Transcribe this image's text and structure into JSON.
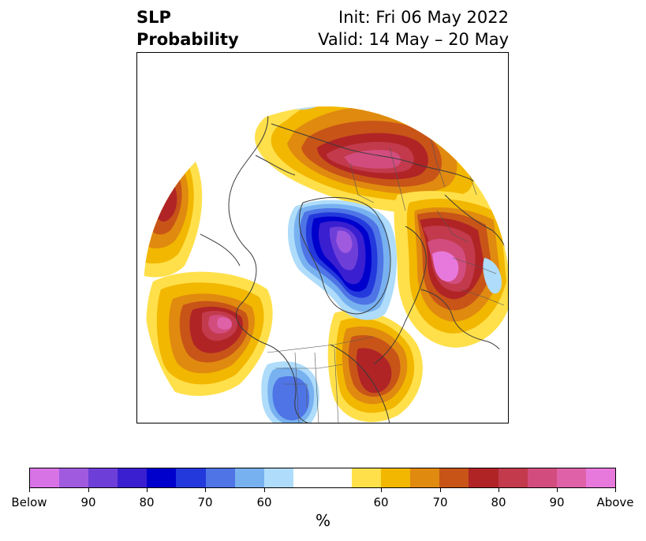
{
  "title": {
    "left_line1": "SLP",
    "left_line2": "Probability",
    "right_line1": "Init: Fri 06 May 2022",
    "right_line2": "Valid: 14 May – 20 May"
  },
  "map": {
    "projection": "polar-stereographic-north",
    "features": [
      {
        "name": "below-normal-east-canada",
        "category": "below",
        "peak": "80"
      },
      {
        "name": "below-normal-greenland-arctic",
        "category": "below",
        "peak": "90"
      },
      {
        "name": "below-normal-western-us",
        "category": "below",
        "peak": "70"
      },
      {
        "name": "below-normal-north-pacific-coast",
        "category": "below",
        "peak": "60"
      },
      {
        "name": "above-normal-siberia",
        "category": "above",
        "peak": "90"
      },
      {
        "name": "above-normal-north-atlantic",
        "category": "above",
        "peak": "Above"
      },
      {
        "name": "above-normal-alaska-bering",
        "category": "above",
        "peak": "80"
      },
      {
        "name": "above-normal-gulf-of-alaska",
        "category": "above",
        "peak": "90"
      },
      {
        "name": "above-normal-eastern-us",
        "category": "above",
        "peak": "80"
      }
    ]
  },
  "colorbar": {
    "colors": [
      "#d873e6",
      "#a05ae0",
      "#6e3fd8",
      "#3a1fd0",
      "#0000cd",
      "#2339dc",
      "#4e74e6",
      "#78b1f0",
      "#aedcfa",
      "#ffffff",
      "#ffffff",
      "#ffe04a",
      "#f2b700",
      "#e08a10",
      "#c85418",
      "#b02426",
      "#c23a4c",
      "#d24d7e",
      "#df61a8",
      "#e879dc"
    ],
    "labels": [
      "Below",
      "90",
      "80",
      "70",
      "60",
      "60",
      "70",
      "80",
      "90",
      "Above"
    ],
    "unit": "%"
  }
}
